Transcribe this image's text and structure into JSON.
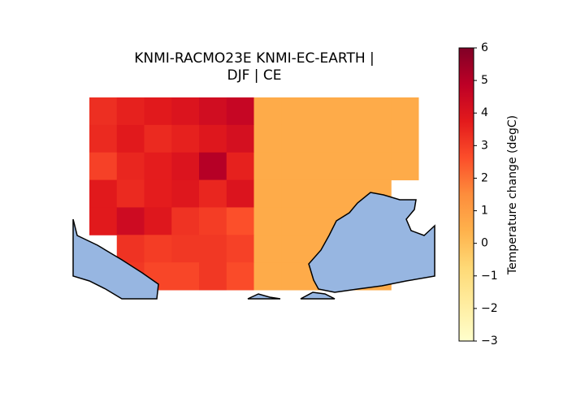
{
  "chart_data": {
    "type": "heatmap",
    "title": [
      "KNMI-RACMO23E KNMI-EC-EARTH |",
      "DJF | CE"
    ],
    "colormap": "YlOrRd",
    "values": [
      [
        3.3,
        3.6,
        3.8,
        4.0,
        4.3,
        4.6,
        0.6,
        0.6,
        0.6,
        0.6,
        0.6,
        0.6
      ],
      [
        3.4,
        3.8,
        3.4,
        3.6,
        3.9,
        4.2,
        0.6,
        0.6,
        0.6,
        0.6,
        0.6,
        0.6
      ],
      [
        2.9,
        3.5,
        3.7,
        4.0,
        5.0,
        3.6,
        0.6,
        0.6,
        0.6,
        0.6,
        0.6,
        0.6
      ],
      [
        3.8,
        3.4,
        3.7,
        3.9,
        3.5,
        4.0,
        0.6,
        0.6,
        0.6,
        0.6,
        0.6,
        null
      ],
      [
        3.8,
        4.4,
        3.9,
        3.2,
        3.0,
        2.6,
        0.6,
        0.6,
        0.6,
        0.6,
        0.6,
        null
      ],
      [
        null,
        3.2,
        3.0,
        3.1,
        3.1,
        2.9,
        0.6,
        0.6,
        0.6,
        0.6,
        0.6,
        null
      ],
      [
        null,
        3.1,
        2.8,
        2.8,
        3.1,
        2.7,
        0.6,
        0.6,
        0.6,
        0.6,
        0.6,
        null
      ]
    ],
    "colorbar_label": "Temperature change (degC)",
    "clim": [
      -3,
      6
    ],
    "cticks": [
      {
        "value": -3,
        "label": "−3"
      },
      {
        "value": -2,
        "label": "−2"
      },
      {
        "value": -1,
        "label": "−1"
      },
      0,
      1,
      2,
      3,
      4,
      5,
      6
    ]
  }
}
